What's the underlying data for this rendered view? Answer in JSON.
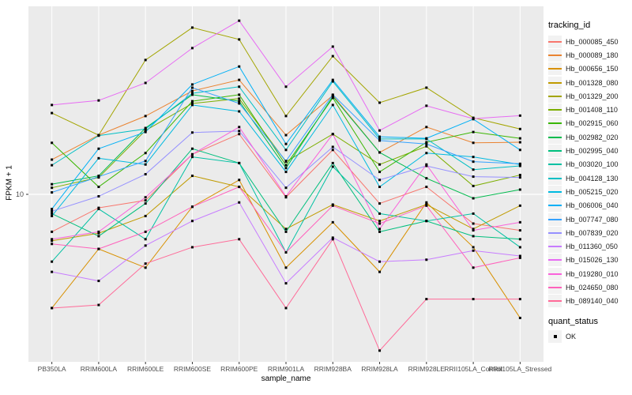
{
  "figure": {
    "panel_background": "#EBEBEB",
    "grid_color": "#FFFFFF",
    "tick_color": "#333333",
    "axis_text_color": "#4D4D4D",
    "key_background": "#F2F2F2",
    "point_color": "#000000"
  },
  "axes": {
    "x_label": "sample_name",
    "y_label": "FPKM + 1",
    "y_tick_labels": [
      "10"
    ]
  },
  "legend": {
    "tracking_title": "tracking_id",
    "quant_title": "quant_status",
    "quant_items": [
      {
        "label": "OK",
        "shape": "filled-square",
        "color": "#000000"
      }
    ]
  },
  "chart_data": {
    "type": "line",
    "title": "",
    "xlabel": "sample_name",
    "ylabel": "FPKM + 1",
    "y_scale": "log10",
    "y_tick": 10,
    "ylim": [
      1.8,
      70
    ],
    "grid": true,
    "legend_position": "right",
    "point_shape": "filled-square",
    "point_color": "#000000",
    "categories": [
      "PB350LA",
      "RRIM600LA",
      "RRIM600LE",
      "RRIM600SE",
      "RRIM600PE",
      "RRIM901LA",
      "RRIM928BA",
      "RRIM928LA",
      "RRIM928LE",
      "RRII105LA_Control",
      "RRII105LA_Stressed"
    ],
    "series": [
      {
        "name": "Hb_000085_450",
        "color": "#F8766D",
        "values": [
          6.8,
          8.7,
          9.4,
          15.1,
          18.6,
          9.7,
          15.8,
          9.1,
          10.8,
          7.4,
          6.9
        ]
      },
      {
        "name": "Hb_000089_180",
        "color": "#EA8331",
        "values": [
          14.3,
          18.4,
          22.4,
          29.0,
          32.5,
          18.4,
          27.7,
          15.4,
          20.0,
          17.0,
          17.1
        ]
      },
      {
        "name": "Hb_000656_150",
        "color": "#D89000",
        "values": [
          3.1,
          5.7,
          4.7,
          8.8,
          11.6,
          4.7,
          7.5,
          4.5,
          9.2,
          5.8,
          2.8
        ]
      },
      {
        "name": "Hb_001328_080",
        "color": "#C09B00",
        "values": [
          6.2,
          6.7,
          8.0,
          12.1,
          10.8,
          7.0,
          9.0,
          7.6,
          9.0,
          7.0,
          8.9
        ]
      },
      {
        "name": "Hb_001329_200",
        "color": "#A3A500",
        "values": [
          23.1,
          18.4,
          39.9,
          55.7,
          49.3,
          22.4,
          41.5,
          25.7,
          30.0,
          22.0,
          19.6
        ]
      },
      {
        "name": "Hb_001408_110",
        "color": "#7CAE00",
        "values": [
          10.7,
          11.9,
          19.3,
          25.5,
          26.8,
          14.0,
          18.6,
          13.6,
          16.4,
          10.9,
          12.2
        ]
      },
      {
        "name": "Hb_002915_060",
        "color": "#39B600",
        "values": [
          17.0,
          10.8,
          15.3,
          26.1,
          27.9,
          13.5,
          27.0,
          12.6,
          17.1,
          19.0,
          17.8
        ]
      },
      {
        "name": "Hb_002982_020",
        "color": "#00BB4E",
        "values": [
          11.1,
          12.1,
          19.8,
          27.9,
          26.1,
          13.1,
          27.4,
          15.4,
          11.8,
          9.6,
          10.5
        ]
      },
      {
        "name": "Hb_002995_040",
        "color": "#00BF7D",
        "values": [
          8.2,
          6.5,
          9.1,
          16.0,
          13.8,
          6.8,
          13.8,
          6.8,
          7.6,
          6.5,
          6.3
        ]
      },
      {
        "name": "Hb_003020_100",
        "color": "#00C1A3",
        "values": [
          5.0,
          8.6,
          6.3,
          14.7,
          13.8,
          5.5,
          13.3,
          8.2,
          7.6,
          8.2,
          5.8
        ]
      },
      {
        "name": "Hb_004128_130",
        "color": "#00BFC4",
        "values": [
          13.5,
          18.3,
          19.6,
          28.3,
          30.3,
          15.8,
          32.0,
          17.7,
          17.7,
          12.9,
          13.4
        ]
      },
      {
        "name": "Hb_005215_020",
        "color": "#00BAE0",
        "values": [
          8.0,
          14.5,
          13.6,
          25.1,
          23.5,
          12.6,
          25.1,
          10.8,
          15.3,
          14.7,
          13.6
        ]
      },
      {
        "name": "Hb_006006_040",
        "color": "#00B0F6",
        "values": [
          8.6,
          16.0,
          19.0,
          31.0,
          37.3,
          16.8,
          32.5,
          18.1,
          17.8,
          21.7,
          15.8
        ]
      },
      {
        "name": "Hb_007747_080",
        "color": "#35A2FF",
        "values": [
          10.2,
          12.0,
          14.1,
          30.0,
          25.5,
          14.1,
          27.9,
          17.4,
          16.8,
          14.0,
          13.7
        ]
      },
      {
        "name": "Hb_007839_020",
        "color": "#9590FF",
        "values": [
          8.4,
          9.8,
          12.3,
          18.9,
          19.2,
          10.7,
          16.3,
          11.6,
          13.4,
          12.0,
          11.9
        ]
      },
      {
        "name": "Hb_011360_050",
        "color": "#C77CFF",
        "values": [
          4.5,
          4.1,
          5.9,
          7.6,
          9.2,
          4.0,
          6.4,
          5.0,
          5.1,
          5.6,
          5.3
        ]
      },
      {
        "name": "Hb_015026_130",
        "color": "#E76BF3",
        "values": [
          25.1,
          26.3,
          31.5,
          45.1,
          59.8,
          30.3,
          45.8,
          19.3,
          24.9,
          21.8,
          22.5
        ]
      },
      {
        "name": "Hb_019280_010",
        "color": "#FA62DB",
        "values": [
          6.3,
          6.8,
          9.7,
          15.1,
          20.0,
          9.8,
          18.6,
          7.0,
          13.6,
          6.9,
          7.5
        ]
      },
      {
        "name": "Hb_024650_080",
        "color": "#FF62BC",
        "values": [
          6.0,
          5.7,
          6.8,
          8.8,
          10.8,
          5.5,
          8.9,
          7.4,
          8.9,
          4.7,
          5.2
        ]
      },
      {
        "name": "Hb_089140_040",
        "color": "#FF6A98",
        "values": [
          3.1,
          3.2,
          4.9,
          5.8,
          6.3,
          3.1,
          6.3,
          2.0,
          3.4,
          3.4,
          3.4
        ]
      }
    ]
  }
}
